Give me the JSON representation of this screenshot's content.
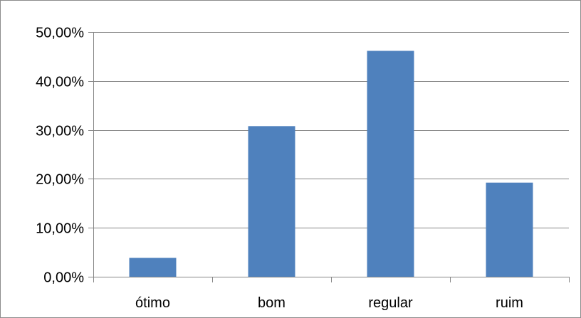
{
  "chart_data": {
    "type": "bar",
    "categories": [
      "ótimo",
      "bom",
      "regular",
      "ruim"
    ],
    "values": [
      0.0385,
      0.3077,
      0.4615,
      0.1923
    ],
    "y_ticks": [
      "0,00%",
      "10,00%",
      "20,00%",
      "30,00%",
      "40,00%",
      "50,00%"
    ],
    "ylim": [
      0,
      0.5
    ],
    "grid": true,
    "legend": "none",
    "bar_color": "#4F81BD",
    "grid_color": "#868686",
    "title": "",
    "xlabel": "",
    "ylabel": ""
  }
}
